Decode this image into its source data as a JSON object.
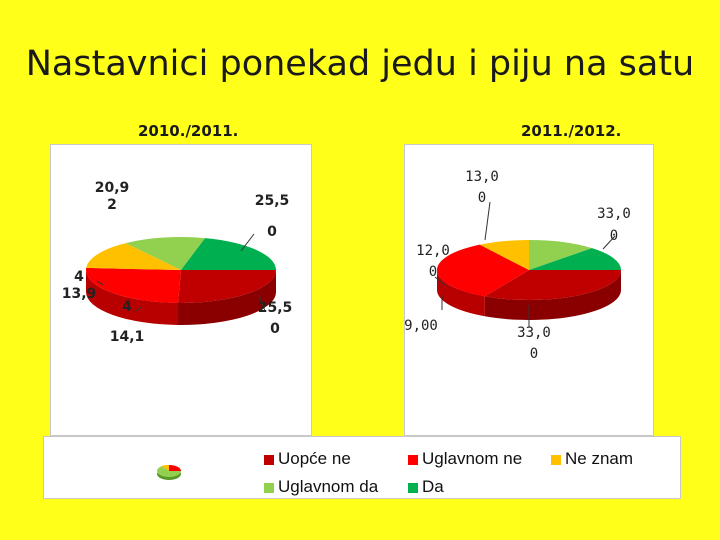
{
  "title": "Nastavnici ponekad jedu i piju na satu",
  "colors": {
    "uopce_ne": "#C00000",
    "uglavnom_ne": "#FF0000",
    "ne_znam": "#FFC000",
    "uglavnom_da": "#92D050",
    "da": "#00B050"
  },
  "legend": {
    "items": [
      {
        "label": "Uopće ne",
        "color": "#C00000"
      },
      {
        "label": "Uglavnom ne",
        "color": "#FF0000"
      },
      {
        "label": "Ne znam",
        "color": "#FFC000"
      },
      {
        "label": "Uglavnom da",
        "color": "#92D050"
      },
      {
        "label": "Da",
        "color": "#00B050"
      }
    ]
  },
  "chart_data": [
    {
      "type": "pie",
      "title": "2010./2011.",
      "categories": [
        "Uopće ne",
        "Uglavnom ne",
        "Ne znam",
        "Uglavnom da",
        "Da"
      ],
      "values": [
        25.5,
        25.5,
        14.14,
        13.94,
        20.92
      ],
      "data_labels": [
        "25,5\n0",
        "25,5\n0",
        "14,1\n4",
        "13,9\n4",
        "20,9\n2"
      ]
    },
    {
      "type": "pie",
      "title": "2011./2012.",
      "categories": [
        "Uopće ne",
        "Uglavnom ne",
        "Ne znam",
        "Uglavnom da",
        "Da"
      ],
      "values": [
        33.0,
        33.0,
        9.0,
        12.0,
        13.0
      ],
      "data_labels": [
        "33,0\n0",
        "33,0\n0",
        "9,00",
        "12,0\n0",
        "13,0\n0"
      ]
    }
  ]
}
